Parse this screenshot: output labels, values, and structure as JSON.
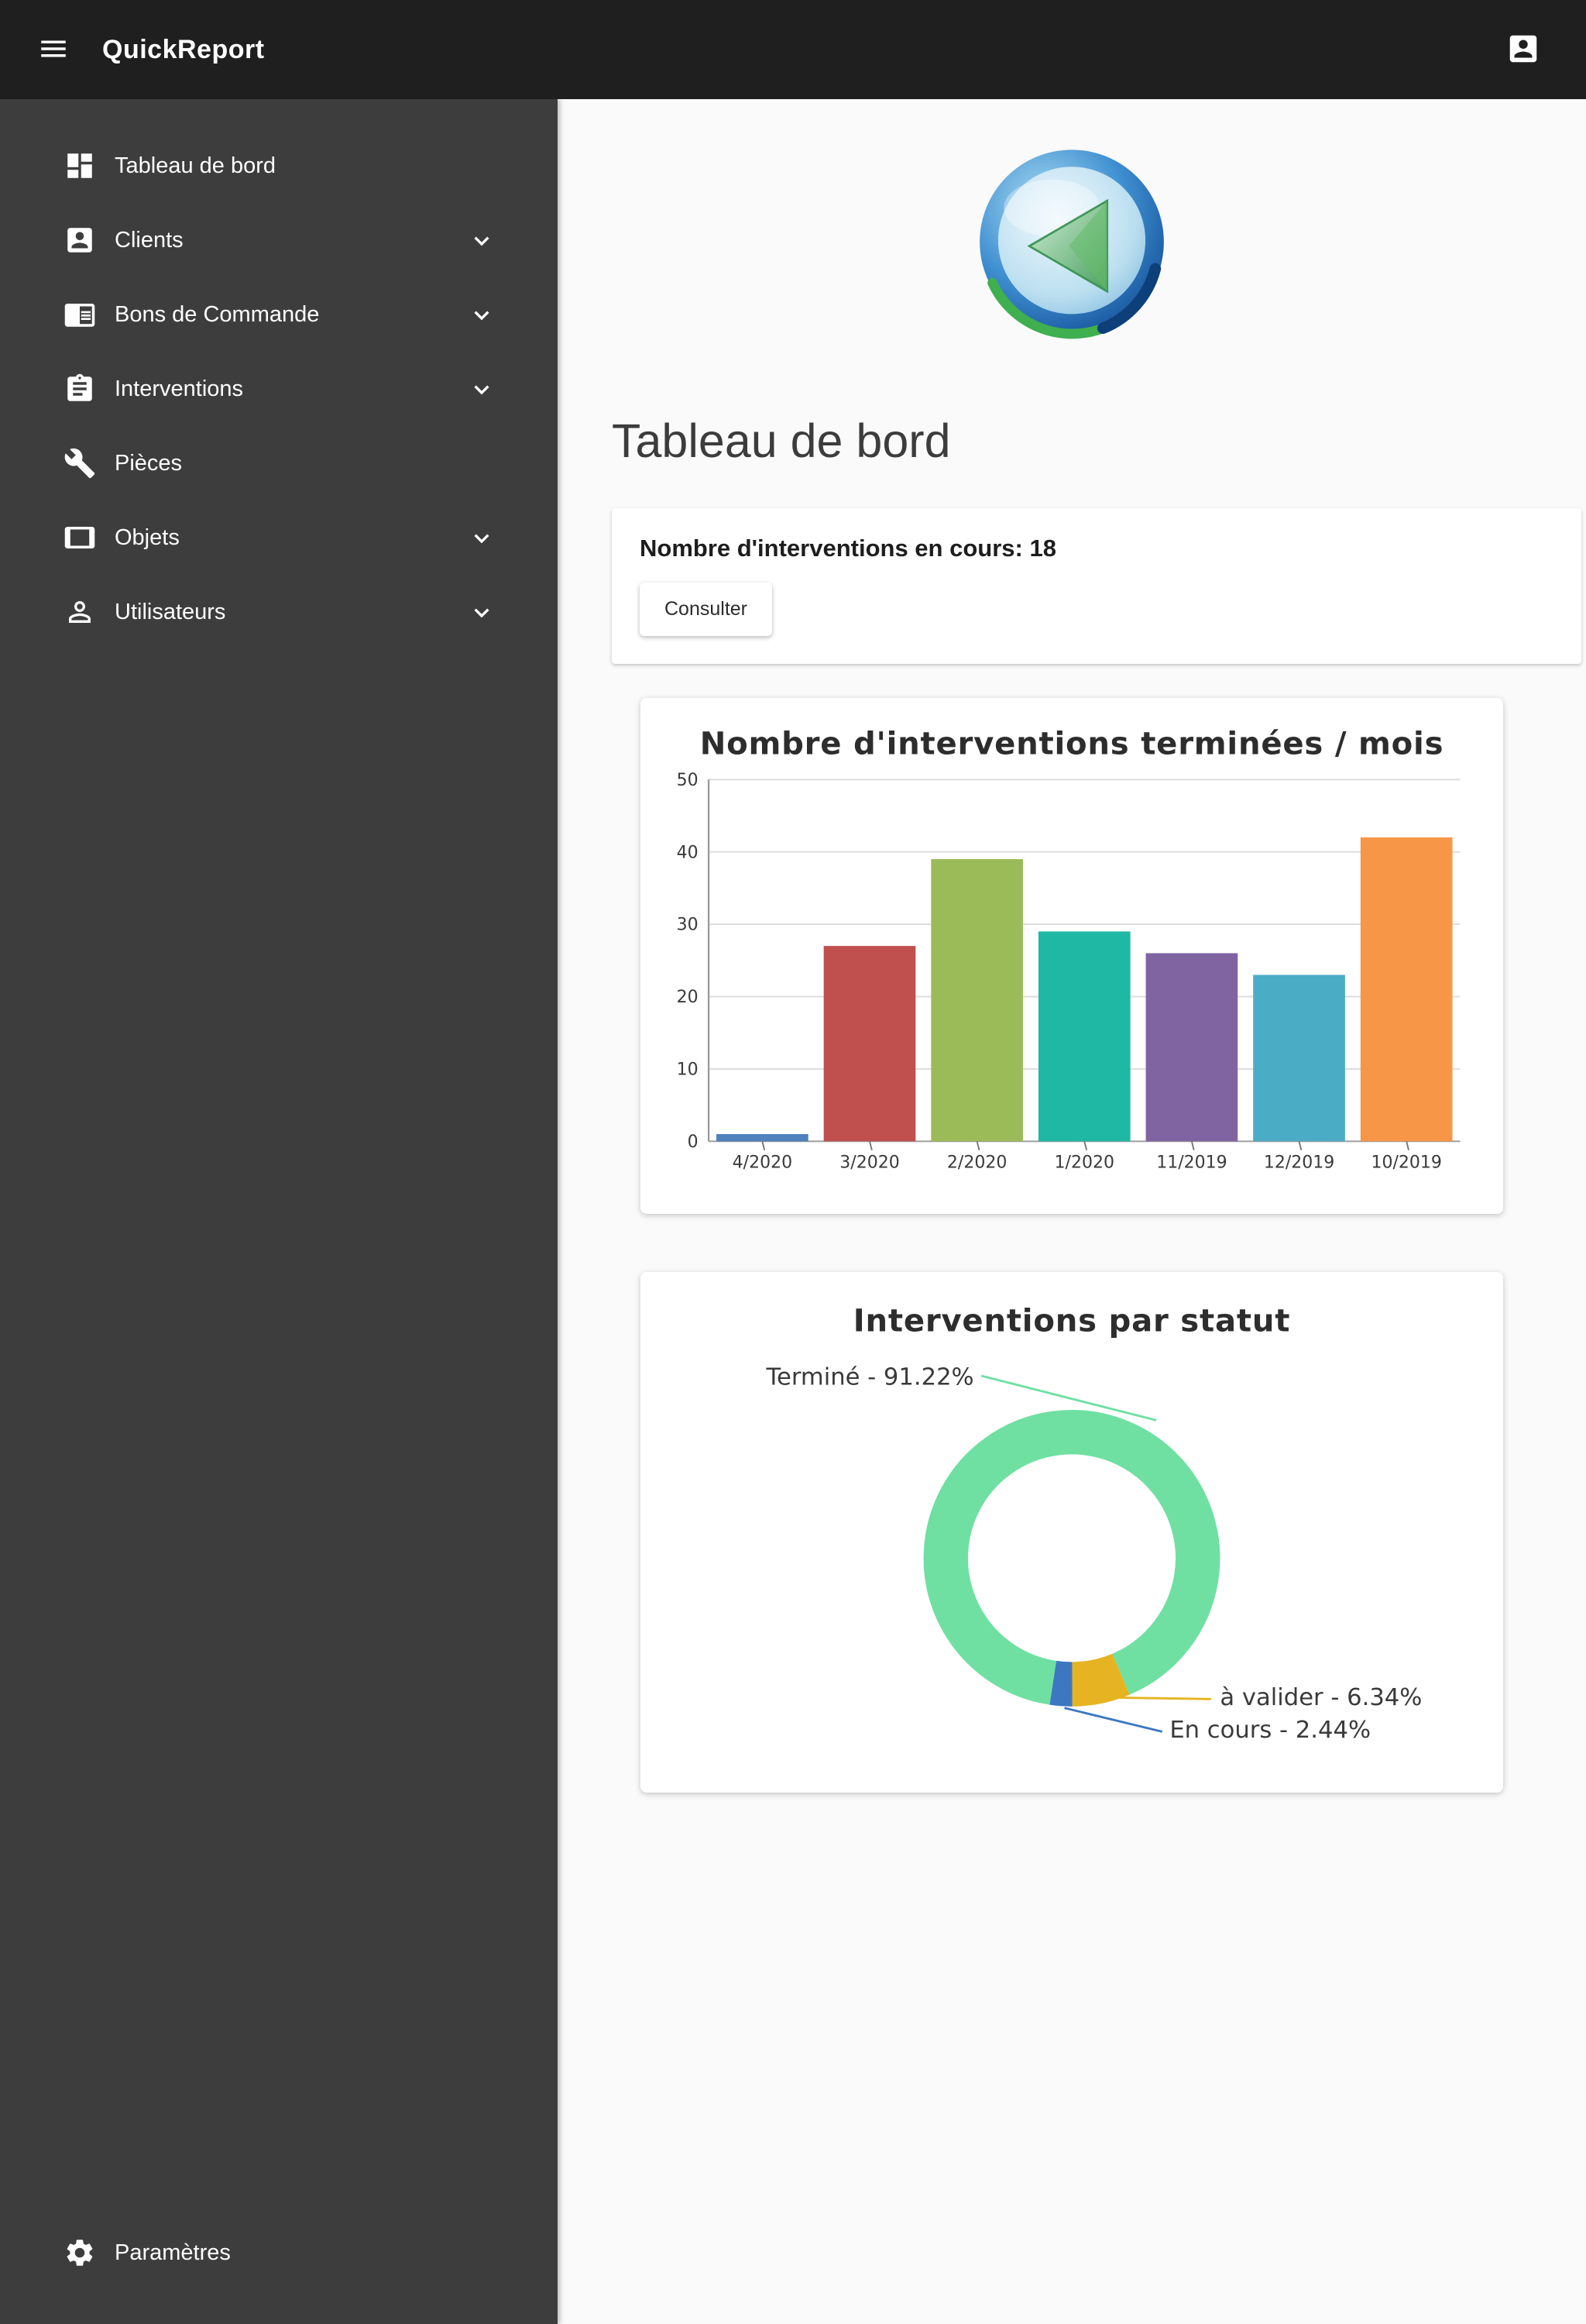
{
  "app": {
    "title": "QuickReport"
  },
  "sidebar": {
    "items": [
      {
        "label": "Tableau de bord",
        "icon": "dashboard-icon",
        "expandable": false
      },
      {
        "label": "Clients",
        "icon": "clients-icon",
        "expandable": true
      },
      {
        "label": "Bons de Commande",
        "icon": "orders-icon",
        "expandable": true
      },
      {
        "label": "Interventions",
        "icon": "interventions-icon",
        "expandable": true
      },
      {
        "label": "Pièces",
        "icon": "wrench-icon",
        "expandable": false
      },
      {
        "label": "Objets",
        "icon": "tablet-icon",
        "expandable": true
      },
      {
        "label": "Utilisateurs",
        "icon": "person-icon",
        "expandable": true
      }
    ],
    "footer_item": {
      "label": "Paramètres",
      "icon": "gear-icon"
    }
  },
  "main": {
    "page_title": "Tableau de bord",
    "summary_card": {
      "text": "Nombre d'interventions en cours: 18",
      "count": 18,
      "button_label": "Consulter"
    }
  },
  "chart_data": [
    {
      "type": "bar",
      "title": "Nombre d'interventions terminées / mois",
      "categories": [
        "4/2020",
        "3/2020",
        "2/2020",
        "1/2020",
        "11/2019",
        "12/2019",
        "10/2019"
      ],
      "values": [
        1,
        27,
        39,
        29,
        26,
        23,
        42
      ],
      "colors": [
        "#4f81bd",
        "#c0504d",
        "#9bbb59",
        "#1eb8a4",
        "#8064a2",
        "#4bacc6",
        "#f79646"
      ],
      "xlabel": "",
      "ylabel": "",
      "ylim": [
        0,
        50
      ],
      "yticks": [
        0,
        10,
        20,
        30,
        40,
        50
      ],
      "grid": true,
      "legend": false
    },
    {
      "type": "donut",
      "title": "Interventions par statut",
      "slices": [
        {
          "label": "Terminé",
          "value": 91.22,
          "display": "Terminé - 91.22%",
          "color": "#6fe0a2"
        },
        {
          "label": "à valider",
          "value": 6.34,
          "display": "à valider - 6.34%",
          "color": "#e6b422"
        },
        {
          "label": "En cours",
          "value": 2.44,
          "display": "En cours - 2.44%",
          "color": "#3d77c2"
        }
      ],
      "legend": false
    }
  ]
}
